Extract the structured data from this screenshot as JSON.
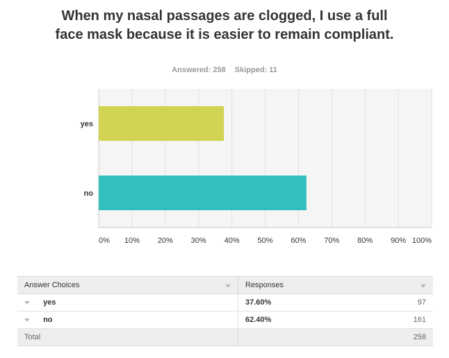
{
  "question": {
    "title": "When my nasal passages are clogged, I use a full face mask because it is easier to remain compliant.",
    "answered": "Answered: 258",
    "skipped": "Skipped: 11"
  },
  "chart_data": {
    "type": "bar",
    "orientation": "horizontal",
    "categories": [
      "yes",
      "no"
    ],
    "values": [
      37.6,
      62.4
    ],
    "colors": [
      "#d1d452",
      "#33bfbf"
    ],
    "xlim": [
      0,
      100
    ],
    "ticks": [
      "0%",
      "10%",
      "20%",
      "30%",
      "40%",
      "50%",
      "60%",
      "70%",
      "80%",
      "90%",
      "100%"
    ],
    "grid": true
  },
  "table": {
    "headers": {
      "choices": "Answer Choices",
      "responses": "Responses"
    },
    "rows": [
      {
        "choice": "yes",
        "percent": "37.60%",
        "count": "97"
      },
      {
        "choice": "no",
        "percent": "62.40%",
        "count": "161"
      }
    ],
    "total": {
      "label": "Total",
      "count": "258"
    }
  }
}
